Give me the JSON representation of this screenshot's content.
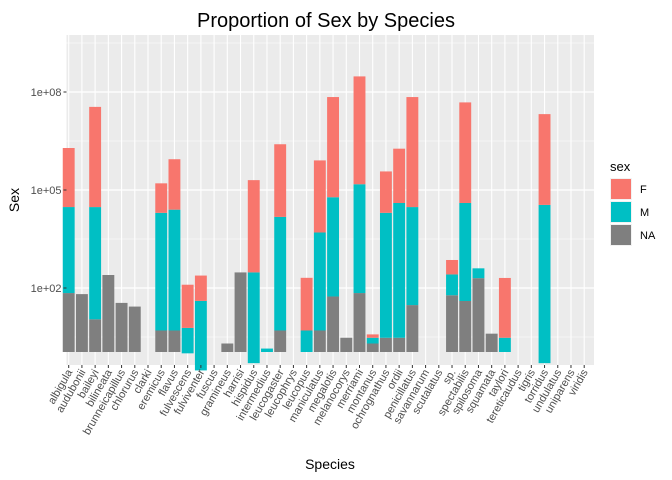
{
  "chart_data": {
    "type": "bar",
    "stacked": true,
    "title": "Proportion of Sex by Species",
    "xlabel": "Species",
    "ylabel": "Sex",
    "y_scale": "log10",
    "ylim": [
      0.1,
      5000000000
    ],
    "y_ticks": [
      100,
      100000,
      100000000
    ],
    "y_tick_labels": [
      "1e+02",
      "1e+05",
      "1e+08"
    ],
    "grid": true,
    "legend_title": "sex",
    "legend_position": "right",
    "categories": [
      "albigula",
      "audubonii",
      "baileyi",
      "bilineata",
      "brunneicapillus",
      "chlorurus",
      "clarki",
      "eremicus",
      "flavus",
      "fulvescens",
      "fulviventer",
      "fuscus",
      "gramineus",
      "harrisi",
      "hispidus",
      "intermedius",
      "leucogaster",
      "leucophrys",
      "leucopus",
      "maniculatus",
      "megalotis",
      "melanocorys",
      "merriami",
      "montanus",
      "ochrognathus",
      "ordii",
      "penicillatus",
      "savannarum",
      "scutalatus",
      "sp.",
      "spectabilis",
      "spilosoma",
      "squamata",
      "taylori",
      "tereticaudus",
      "tigris",
      "torridus",
      "undulatus",
      "uniparens",
      "viridis"
    ],
    "series": [
      {
        "name": "NA",
        "color": "#7f7f7f",
        "values": [
          70,
          65,
          11,
          250,
          35,
          27,
          0,
          5,
          5,
          1,
          0.3,
          1,
          2,
          300,
          0.5,
          0,
          5,
          0.2,
          0,
          5,
          55,
          3,
          70,
          2,
          3,
          3,
          30,
          0.2,
          0,
          60,
          40,
          200,
          4,
          0,
          0,
          0,
          0.5,
          1,
          0,
          0
        ]
      },
      {
        "name": "M",
        "color": "#00bfc4",
        "values": [
          30000,
          0,
          30000,
          0,
          0,
          0,
          0,
          20000,
          25000,
          5,
          40,
          0,
          0,
          0,
          300,
          1.4,
          15000,
          0,
          5,
          5000,
          60000,
          0,
          150000,
          1,
          20000,
          40000,
          30000,
          0,
          0,
          200,
          40000,
          200,
          0,
          3,
          0,
          0,
          35000,
          0,
          0,
          0
        ]
      },
      {
        "name": "F",
        "color": "#f8766d",
        "values": [
          1900000,
          0,
          35000000,
          0,
          0,
          0,
          0,
          140000,
          850000,
          120,
          200,
          0,
          0,
          0,
          200000,
          0,
          2500000,
          0,
          200,
          800000,
          70000000,
          0,
          300000000,
          0.8,
          350000,
          1800000,
          70000000,
          0,
          0,
          460,
          48000000,
          0,
          0,
          200,
          0,
          0,
          21000000,
          0,
          0,
          0
        ]
      }
    ]
  }
}
